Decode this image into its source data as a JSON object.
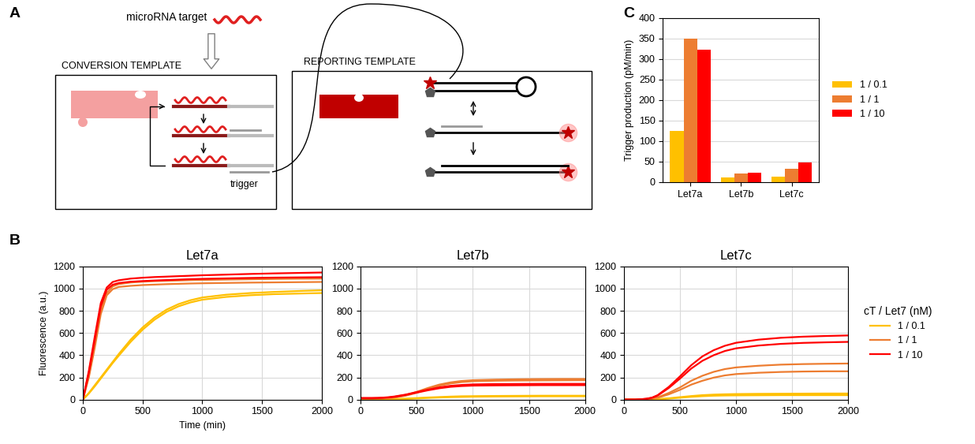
{
  "panel_labels": [
    "A",
    "B",
    "C"
  ],
  "diagram": {
    "target_label": "microRNA target",
    "conversion_title": "CONVERSION TEMPLATE",
    "trigger_label": "trigger",
    "reporting_title": "REPORTING TEMPLATE"
  },
  "chart_data": [
    {
      "type": "line",
      "title": "Let7a",
      "x_label": "Time (min)",
      "y_label": "Fluorescence (a.u.)",
      "x": [
        0,
        50,
        100,
        150,
        200,
        250,
        300,
        400,
        500,
        600,
        700,
        800,
        900,
        1000,
        1200,
        1400,
        1600,
        1800,
        2000
      ],
      "series": [
        {
          "name": "1 / 0.1",
          "color": "#ffc000",
          "replicates": [
            [
              0,
              60,
              130,
              200,
              270,
              340,
              410,
              540,
              650,
              740,
              810,
              860,
              895,
              920,
              945,
              960,
              970,
              978,
              985
            ],
            [
              0,
              55,
              120,
              190,
              260,
              330,
              395,
              520,
              630,
              720,
              790,
              840,
              875,
              900,
              925,
              940,
              950,
              955,
              960
            ]
          ]
        },
        {
          "name": "1 / 1",
          "color": "#ed7d31",
          "replicates": [
            [
              0,
              220,
              500,
              800,
              960,
              1020,
              1040,
              1055,
              1062,
              1067,
              1070,
              1073,
              1076,
              1078,
              1081,
              1084,
              1087,
              1089,
              1090
            ],
            [
              0,
              200,
              470,
              770,
              940,
              995,
              1015,
              1025,
              1032,
              1036,
              1040,
              1043,
              1046,
              1048,
              1051,
              1054,
              1056,
              1058,
              1060
            ]
          ]
        },
        {
          "name": "1 / 10",
          "color": "#ff0000",
          "replicates": [
            [
              0,
              260,
              570,
              870,
              1010,
              1060,
              1075,
              1090,
              1098,
              1104,
              1108,
              1112,
              1116,
              1120,
              1126,
              1132,
              1137,
              1141,
              1145
            ],
            [
              0,
              240,
              540,
              840,
              990,
              1035,
              1050,
              1062,
              1068,
              1073,
              1077,
              1081,
              1085,
              1088,
              1092,
              1096,
              1099,
              1101,
              1103
            ]
          ]
        }
      ],
      "xlim": [
        0,
        2000
      ],
      "xticks": [
        0,
        500,
        1000,
        1500,
        2000
      ],
      "ylim": [
        0,
        1200
      ],
      "yticks": [
        0,
        200,
        400,
        600,
        800,
        1000,
        1200
      ],
      "grid": true
    },
    {
      "type": "line",
      "title": "Let7b",
      "x": [
        0,
        50,
        100,
        150,
        200,
        250,
        300,
        400,
        500,
        600,
        700,
        800,
        900,
        1000,
        1200,
        1400,
        1600,
        1800,
        2000
      ],
      "series": [
        {
          "name": "1 / 0.1",
          "color": "#ffc000",
          "replicates": [
            [
              0,
              0,
              0,
              0,
              1,
              2,
              3,
              6,
              10,
              15,
              19,
              22,
              24,
              26,
              28,
              29,
              30,
              30,
              30
            ],
            [
              0,
              0,
              0,
              1,
              2,
              3,
              5,
              9,
              14,
              19,
              23,
              27,
              30,
              31,
              33,
              34,
              35,
              35,
              35
            ]
          ]
        },
        {
          "name": "1 / 1",
          "color": "#ed7d31",
          "replicates": [
            [
              10,
              10,
              10,
              11,
              12,
              15,
              20,
              40,
              70,
              105,
              135,
              155,
              168,
              175,
              180,
              183,
              185,
              186,
              186
            ],
            [
              10,
              10,
              10,
              11,
              12,
              14,
              18,
              35,
              62,
              95,
              125,
              145,
              158,
              165,
              170,
              172,
              173,
              174,
              175
            ]
          ]
        },
        {
          "name": "1 / 10",
          "color": "#ff0000",
          "replicates": [
            [
              15,
              15,
              15,
              16,
              18,
              22,
              28,
              45,
              68,
              90,
              110,
              124,
              132,
              137,
              140,
              141,
              142,
              142,
              142
            ],
            [
              12,
              12,
              12,
              13,
              15,
              19,
              25,
              42,
              63,
              84,
              102,
              115,
              122,
              126,
              128,
              129,
              130,
              130,
              130
            ]
          ]
        }
      ],
      "xlim": [
        0,
        2000
      ],
      "xticks": [
        0,
        500,
        1000,
        1500,
        2000
      ],
      "ylim": [
        0,
        1200
      ],
      "yticks": [
        0,
        200,
        400,
        600,
        800,
        1000,
        1200
      ],
      "grid": true
    },
    {
      "type": "line",
      "title": "Let7c",
      "legend": "center left",
      "legend_title": "cT / Let7 (nM)",
      "x": [
        0,
        50,
        100,
        150,
        200,
        250,
        300,
        400,
        500,
        600,
        700,
        800,
        900,
        1000,
        1200,
        1400,
        1600,
        1800,
        2000
      ],
      "series": [
        {
          "name": "1 / 0.1",
          "color": "#ffc000",
          "replicates": [
            [
              0,
              0,
              0,
              0,
              1,
              2,
              4,
              12,
              22,
              32,
              40,
              45,
              48,
              50,
              52,
              53,
              54,
              55,
              55
            ],
            [
              0,
              0,
              0,
              0,
              1,
              2,
              3,
              9,
              17,
              25,
              31,
              35,
              37,
              38,
              39,
              40,
              40,
              40,
              40
            ]
          ]
        },
        {
          "name": "1 / 1",
          "color": "#ed7d31",
          "replicates": [
            [
              0,
              0,
              0,
              2,
              5,
              10,
              20,
              60,
              110,
              170,
              215,
              250,
              275,
              290,
              305,
              315,
              320,
              323,
              325
            ],
            [
              0,
              0,
              0,
              2,
              4,
              8,
              16,
              48,
              88,
              135,
              170,
              198,
              218,
              230,
              242,
              249,
              253,
              255,
              255
            ]
          ]
        },
        {
          "name": "1 / 10",
          "color": "#ff0000",
          "replicates": [
            [
              0,
              0,
              0,
              3,
              8,
              18,
              40,
              115,
              210,
              310,
              390,
              445,
              485,
              512,
              540,
              557,
              567,
              573,
              578
            ],
            [
              0,
              0,
              0,
              3,
              7,
              16,
              36,
              105,
              190,
              280,
              350,
              400,
              438,
              462,
              487,
              502,
              511,
              516,
              520
            ]
          ]
        }
      ],
      "xlim": [
        0,
        2000
      ],
      "xticks": [
        0,
        500,
        1000,
        1500,
        2000
      ],
      "ylim": [
        0,
        1200
      ],
      "yticks": [
        0,
        200,
        400,
        600,
        800,
        1000,
        1200
      ],
      "grid": true
    },
    {
      "type": "bar",
      "y_label": "Trigger production (pM/min)",
      "legend": "center left",
      "categories": [
        "Let7a",
        "Let7b",
        "Let7c"
      ],
      "series": [
        {
          "name": "1 / 0.1",
          "color": "#ffc000",
          "values": [
            125,
            12,
            14
          ]
        },
        {
          "name": "1 / 1",
          "color": "#ed7d31",
          "values": [
            350,
            21,
            32
          ]
        },
        {
          "name": "1 / 10",
          "color": "#ff0000",
          "values": [
            322,
            22,
            47
          ]
        }
      ],
      "ylim": [
        0,
        400
      ],
      "yticks": [
        0,
        50,
        100,
        150,
        200,
        250,
        300,
        350,
        400
      ],
      "grid": true
    }
  ]
}
